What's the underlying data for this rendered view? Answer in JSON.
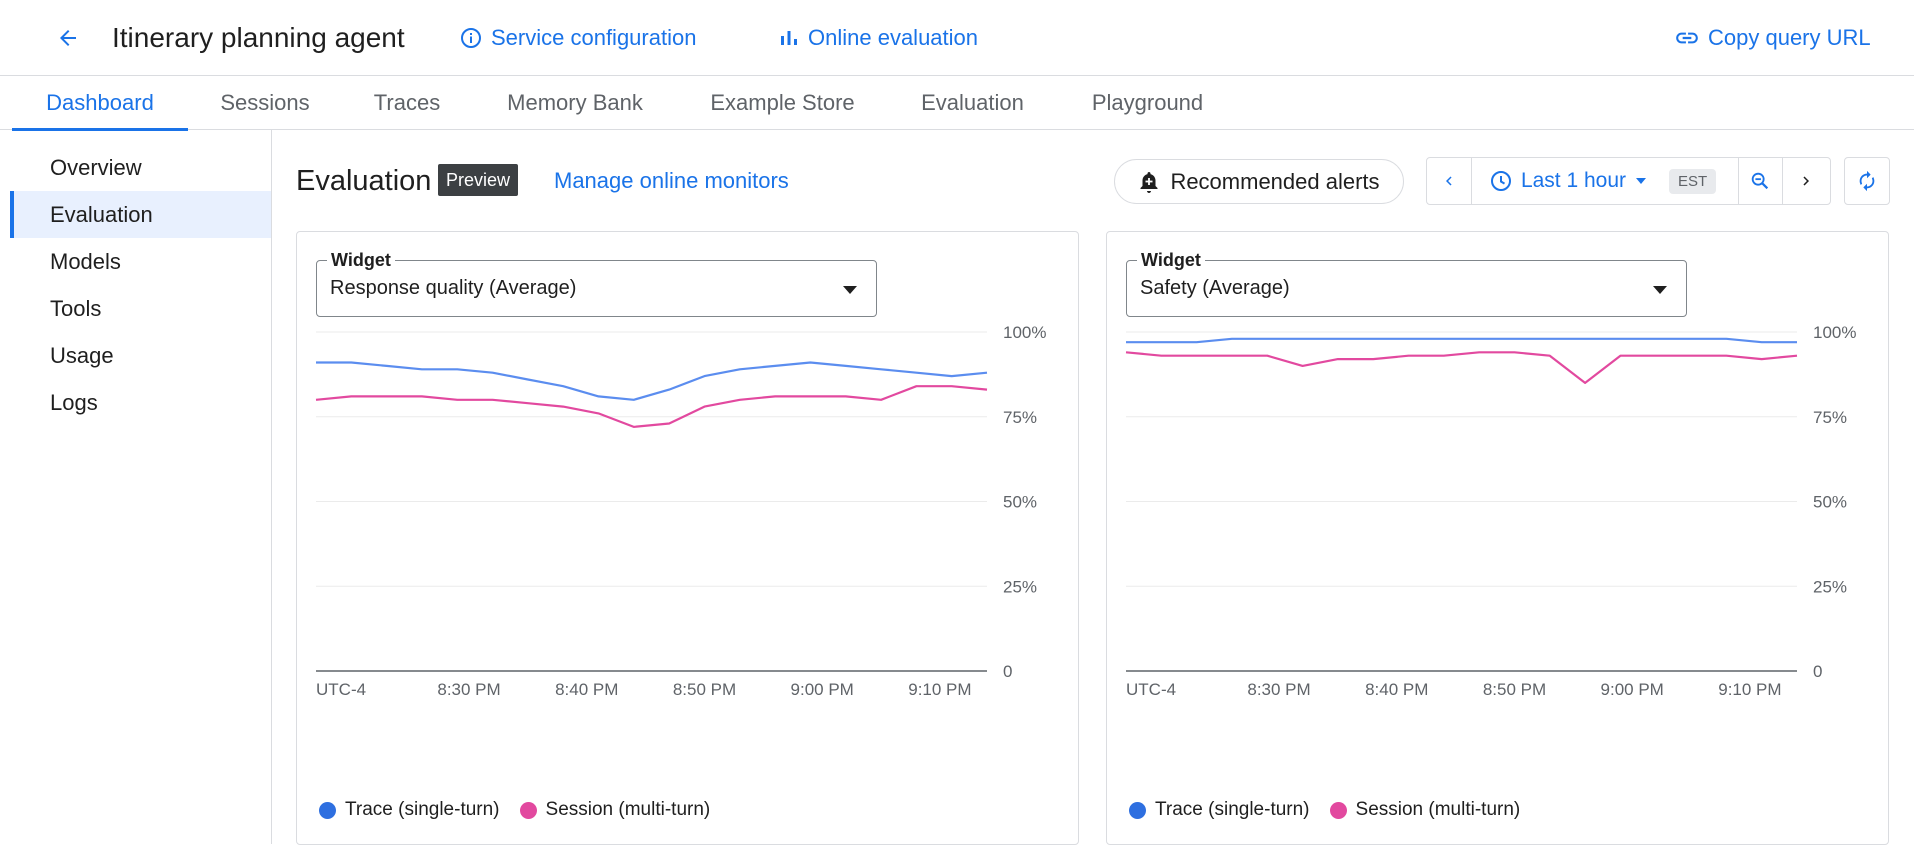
{
  "header": {
    "title": "Itinerary planning agent",
    "service_configuration": "Service configuration",
    "online_evaluation": "Online evaluation",
    "copy_query_url": "Copy query URL",
    "icons": {
      "back": "arrow-left-icon",
      "info": "info-icon",
      "bars": "bar-chart-icon",
      "link": "link-icon"
    }
  },
  "tabs": [
    {
      "label": "Dashboard",
      "active": true
    },
    {
      "label": "Sessions"
    },
    {
      "label": "Traces"
    },
    {
      "label": "Memory Bank"
    },
    {
      "label": "Example Store"
    },
    {
      "label": "Evaluation"
    },
    {
      "label": "Playground"
    }
  ],
  "sidebar": {
    "items": [
      {
        "label": "Overview"
      },
      {
        "label": "Evaluation",
        "active": true
      },
      {
        "label": "Models"
      },
      {
        "label": "Tools"
      },
      {
        "label": "Usage"
      },
      {
        "label": "Logs"
      }
    ]
  },
  "section": {
    "title": "Evaluation",
    "badge": "Preview",
    "manage_link": "Manage online monitors",
    "recommended_alerts": "Recommended alerts",
    "time_range": "Last 1 hour",
    "timezone": "EST"
  },
  "colors": {
    "accent": "#1a73e8",
    "trace": "#5b8def",
    "session": "#e2499f"
  },
  "widgets": [
    {
      "legend": "Widget",
      "value": "Response quality (Average)"
    },
    {
      "legend": "Widget",
      "value": "Safety (Average)"
    }
  ],
  "legend": {
    "trace": "Trace (single-turn)",
    "session": "Session (multi-turn)"
  },
  "chart_data": [
    {
      "type": "line",
      "title": "Response quality (Average)",
      "xlabel": "",
      "ylabel": "",
      "x_tick_labels": [
        "UTC-4",
        "8:30 PM",
        "8:40 PM",
        "8:50 PM",
        "9:00 PM",
        "9:10 PM"
      ],
      "y_tick_labels": [
        "0",
        "25%",
        "50%",
        "75%",
        "100%"
      ],
      "ylim": [
        0,
        100
      ],
      "xlim": [
        "8:17 PM",
        "9:14 PM"
      ],
      "grid": true,
      "legend_position": "bottom-left",
      "series": [
        {
          "name": "Trace (single-turn)",
          "color": "#5b8def",
          "x": [
            "8:17 PM",
            "8:20 PM",
            "8:23 PM",
            "8:26 PM",
            "8:29 PM",
            "8:32 PM",
            "8:35 PM",
            "8:38 PM",
            "8:41 PM",
            "8:44 PM",
            "8:47 PM",
            "8:50 PM",
            "8:53 PM",
            "8:56 PM",
            "8:59 PM",
            "9:02 PM",
            "9:05 PM",
            "9:08 PM",
            "9:11 PM",
            "9:14 PM"
          ],
          "values": [
            91,
            91,
            90,
            89,
            89,
            88,
            86,
            84,
            81,
            80,
            83,
            87,
            89,
            90,
            91,
            90,
            89,
            88,
            87,
            88
          ]
        },
        {
          "name": "Session (multi-turn)",
          "color": "#e2499f",
          "x": [
            "8:17 PM",
            "8:20 PM",
            "8:23 PM",
            "8:26 PM",
            "8:29 PM",
            "8:32 PM",
            "8:35 PM",
            "8:38 PM",
            "8:41 PM",
            "8:44 PM",
            "8:47 PM",
            "8:50 PM",
            "8:53 PM",
            "8:56 PM",
            "8:59 PM",
            "9:02 PM",
            "9:05 PM",
            "9:08 PM",
            "9:11 PM",
            "9:14 PM"
          ],
          "values": [
            80,
            81,
            81,
            81,
            80,
            80,
            79,
            78,
            76,
            72,
            73,
            78,
            80,
            81,
            81,
            81,
            80,
            84,
            84,
            83
          ]
        }
      ]
    },
    {
      "type": "line",
      "title": "Safety (Average)",
      "xlabel": "",
      "ylabel": "",
      "x_tick_labels": [
        "UTC-4",
        "8:30 PM",
        "8:40 PM",
        "8:50 PM",
        "9:00 PM",
        "9:10 PM"
      ],
      "y_tick_labels": [
        "0",
        "25%",
        "50%",
        "75%",
        "100%"
      ],
      "ylim": [
        0,
        100
      ],
      "xlim": [
        "8:17 PM",
        "9:14 PM"
      ],
      "grid": true,
      "legend_position": "bottom-left",
      "series": [
        {
          "name": "Trace (single-turn)",
          "color": "#5b8def",
          "x": [
            "8:17 PM",
            "8:20 PM",
            "8:23 PM",
            "8:26 PM",
            "8:29 PM",
            "8:32 PM",
            "8:35 PM",
            "8:38 PM",
            "8:41 PM",
            "8:44 PM",
            "8:47 PM",
            "8:50 PM",
            "8:53 PM",
            "8:56 PM",
            "8:59 PM",
            "9:02 PM",
            "9:05 PM",
            "9:08 PM",
            "9:11 PM",
            "9:14 PM"
          ],
          "values": [
            97,
            97,
            97,
            98,
            98,
            98,
            98,
            98,
            98,
            98,
            98,
            98,
            98,
            98,
            98,
            98,
            98,
            98,
            97,
            97
          ]
        },
        {
          "name": "Session (multi-turn)",
          "color": "#e2499f",
          "x": [
            "8:17 PM",
            "8:20 PM",
            "8:23 PM",
            "8:26 PM",
            "8:29 PM",
            "8:32 PM",
            "8:35 PM",
            "8:38 PM",
            "8:41 PM",
            "8:44 PM",
            "8:47 PM",
            "8:50 PM",
            "8:53 PM",
            "8:56 PM",
            "8:59 PM",
            "9:02 PM",
            "9:05 PM",
            "9:08 PM",
            "9:11 PM",
            "9:14 PM"
          ],
          "values": [
            94,
            93,
            93,
            93,
            93,
            90,
            92,
            92,
            93,
            93,
            94,
            94,
            93,
            85,
            93,
            93,
            93,
            93,
            92,
            93
          ]
        }
      ]
    }
  ]
}
